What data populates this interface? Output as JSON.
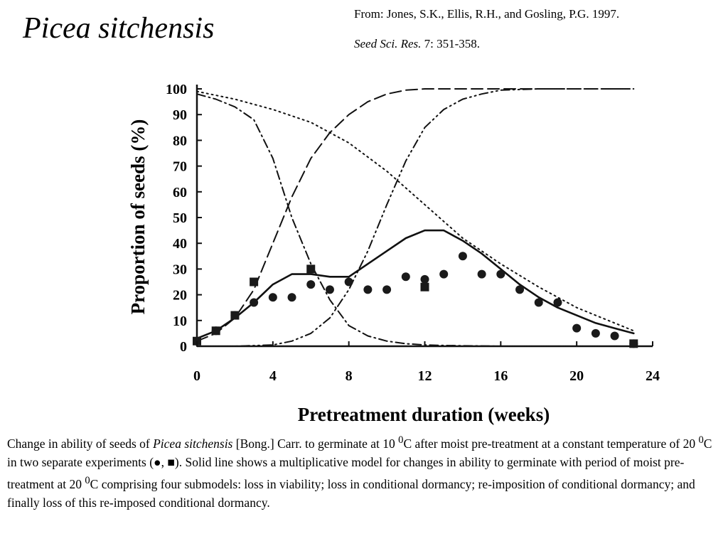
{
  "title": "Picea sitchensis",
  "citation": {
    "authors": "From: Jones, S.K., Ellis, R.H., and Gosling, P.G. 1997.",
    "journal": "Seed Sci. Res.",
    "volume_pages": " 7: 351-358."
  },
  "caption": {
    "part1": "Change in ability of seeds of ",
    "species": "Picea sitchensis",
    "part2": " [Bong.] Carr. to germinate at 10 ",
    "deg_a": "0",
    "part3": "C after moist pre-treatment at a constant temperature of 20 ",
    "deg_b": "0",
    "part4": "C in two separate experiments (●, ■).  Solid line shows a multiplicative model for changes in ability to germinate with period of moist pre-treatment at 20 ",
    "deg_c": "0",
    "part5": "C comprising four submodels: loss in viability; loss in conditional dormancy; re-imposition of conditional dormancy; and finally loss of this re-imposed conditional dormancy."
  },
  "chart_data": {
    "type": "line",
    "xlabel": "Pretreatment duration (weeks)",
    "ylabel": "Proportion of seeds (%)",
    "xlim": [
      0,
      24
    ],
    "ylim": [
      0,
      100
    ],
    "xticks": [
      0,
      4,
      8,
      12,
      16,
      20,
      24
    ],
    "yticks": [
      0,
      10,
      20,
      30,
      40,
      50,
      60,
      70,
      80,
      90,
      100
    ],
    "grid": false,
    "series": [
      {
        "style": "solid",
        "x": [
          0,
          1,
          2,
          3,
          4,
          5,
          6,
          7,
          8,
          9,
          10,
          11,
          12,
          13,
          14,
          15,
          16,
          17,
          18,
          19,
          20,
          21,
          22,
          23
        ],
        "y": [
          3,
          6,
          11,
          17,
          24,
          28,
          28,
          27,
          27,
          32,
          37,
          42,
          45,
          45,
          41,
          36,
          30,
          24,
          19,
          15,
          12,
          9,
          7,
          5
        ]
      },
      {
        "style": "dotted",
        "x": [
          0,
          2,
          4,
          6,
          8,
          10,
          12,
          14,
          16,
          18,
          20,
          22,
          23
        ],
        "y": [
          99,
          96,
          92,
          87,
          79,
          68,
          55,
          42,
          32,
          23,
          15,
          9,
          6
        ]
      },
      {
        "style": "dash-dot",
        "x": [
          0,
          1,
          2,
          3,
          4,
          5,
          6,
          7,
          8,
          9,
          10,
          11,
          12,
          13,
          14,
          15,
          16,
          17,
          18,
          20,
          23
        ],
        "y": [
          98,
          96,
          93,
          88,
          73,
          50,
          32,
          18,
          8,
          4,
          2,
          1,
          0.5,
          0.3,
          0.2,
          0.1,
          0,
          0,
          0,
          0,
          0
        ]
      },
      {
        "style": "dashed",
        "x": [
          0,
          1,
          2,
          3,
          4,
          5,
          6,
          7,
          8,
          9,
          10,
          11,
          12,
          14,
          16,
          18,
          20,
          23
        ],
        "y": [
          2,
          5,
          11,
          22,
          40,
          58,
          73,
          83,
          90,
          95,
          98,
          99.5,
          100,
          100,
          100,
          100,
          100,
          100
        ]
      },
      {
        "style": "dash-dot-dot",
        "x": [
          0,
          2,
          4,
          5,
          6,
          7,
          8,
          9,
          10,
          11,
          12,
          13,
          14,
          15,
          16,
          18,
          20,
          23
        ],
        "y": [
          0,
          0,
          0.5,
          2,
          5,
          11,
          22,
          37,
          55,
          72,
          85,
          92,
          96,
          98,
          99.5,
          100,
          100,
          100
        ]
      }
    ],
    "points": {
      "circle": {
        "x": [
          0,
          1,
          2,
          3,
          4,
          5,
          6,
          7,
          8,
          9,
          10,
          11,
          12,
          13,
          14,
          15,
          16,
          17,
          18,
          19,
          20,
          21,
          22,
          23
        ],
        "y": [
          2,
          6,
          12,
          17,
          19,
          19,
          24,
          22,
          25,
          22,
          22,
          27,
          26,
          28,
          35,
          28,
          28,
          22,
          17,
          17,
          7,
          5,
          4,
          1
        ]
      },
      "square": {
        "x": [
          0,
          1,
          2,
          3,
          6,
          12,
          23
        ],
        "y": [
          2,
          6,
          12,
          25,
          30,
          23,
          1
        ]
      }
    }
  }
}
